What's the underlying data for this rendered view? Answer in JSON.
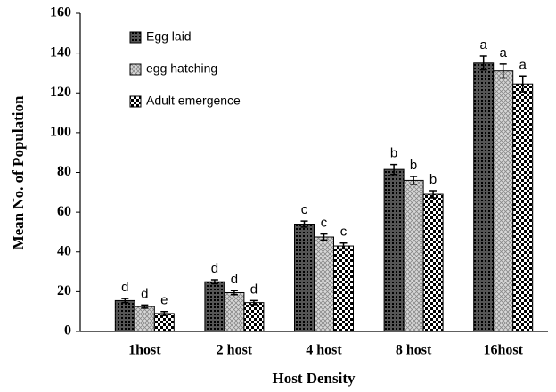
{
  "chart_data": {
    "type": "bar",
    "x_label": "Host Density",
    "y_label": "Mean No. of Population",
    "categories": [
      "1host",
      "2 host",
      "4 host",
      "8 host",
      "16host"
    ],
    "series": [
      {
        "name": "Egg laid",
        "color": "#555555",
        "values": [
          15.5,
          25,
          54,
          81.5,
          135
        ],
        "errors": [
          1,
          1,
          1.5,
          2.5,
          3.5
        ],
        "letters": [
          "d",
          "d",
          "c",
          "b",
          "a"
        ]
      },
      {
        "name": "egg hatching",
        "color": "#d8d8d8",
        "values": [
          12.5,
          19.5,
          47.5,
          76,
          131
        ],
        "errors": [
          0.8,
          1,
          1.5,
          2,
          3.5
        ],
        "letters": [
          "d",
          "d",
          "c",
          "b",
          "a"
        ]
      },
      {
        "name": "Adult emergence",
        "color": "#ffffff",
        "values": [
          9,
          14.5,
          43,
          69,
          124.5
        ],
        "errors": [
          1,
          1,
          1.5,
          1.8,
          4
        ],
        "letters": [
          "e",
          "d",
          "c",
          "b",
          "a"
        ]
      }
    ],
    "ylim": [
      0,
      160
    ],
    "yticks": [
      0,
      20,
      40,
      60,
      80,
      100,
      120,
      140,
      160
    ],
    "grid": false,
    "legend": "upper left"
  }
}
